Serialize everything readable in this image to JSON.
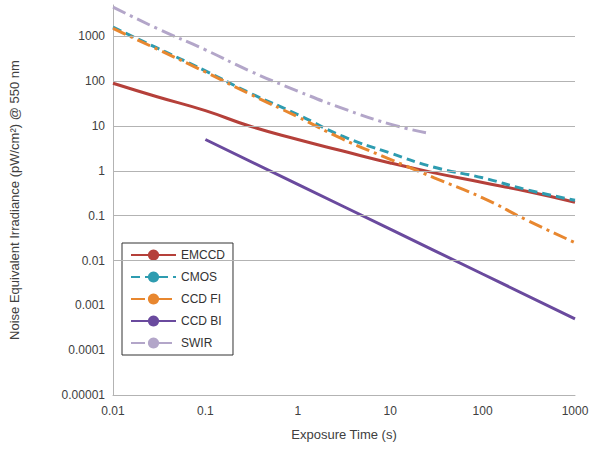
{
  "chart_data": {
    "type": "line",
    "x_label": "Exposure Time (s)",
    "y_label": "Noise Equivalent Irradiance (pW/cm²) @ 550 nm",
    "log": true,
    "grid": true,
    "legend": "lower left",
    "xlim": [
      0.01,
      1000
    ],
    "xticks": [
      0.01,
      0.1,
      1,
      10,
      100,
      1000
    ],
    "ylim": [
      1e-05,
      5000
    ],
    "yticks": [
      1e-05,
      0.0001,
      0.001,
      0.01,
      0.1,
      1,
      10,
      100,
      1000
    ],
    "series": [
      {
        "name": "EMCCD",
        "color": "#b5403a",
        "line_style": "solid",
        "x": [
          0.01,
          0.03,
          0.1,
          0.3,
          1,
          3,
          10,
          30,
          100,
          300,
          1000
        ],
        "values": [
          90,
          45,
          22,
          10,
          5,
          2.8,
          1.5,
          0.9,
          0.55,
          0.35,
          0.2
        ]
      },
      {
        "name": "CMOS",
        "color": "#2e9cb0",
        "line_style": "dashed",
        "x": [
          0.01,
          0.03,
          0.1,
          0.3,
          1,
          3,
          10,
          30,
          100,
          300,
          1000
        ],
        "values": [
          1600,
          550,
          170,
          55,
          18,
          6,
          2.5,
          1.2,
          0.7,
          0.38,
          0.22
        ]
      },
      {
        "name": "CCD FI",
        "color": "#e8872f",
        "line_style": "dashdot",
        "x": [
          0.01,
          0.03,
          0.1,
          0.3,
          1,
          3,
          10,
          30,
          100,
          300,
          1000
        ],
        "values": [
          1500,
          520,
          160,
          52,
          16,
          5.2,
          1.8,
          0.7,
          0.25,
          0.08,
          0.025
        ]
      },
      {
        "name": "CCD BI",
        "color": "#6a4a9e",
        "line_style": "solid",
        "x": [
          0.1,
          1,
          10,
          100,
          1000
        ],
        "values": [
          5,
          0.5,
          0.05,
          0.005,
          0.0005
        ]
      },
      {
        "name": "SWIR",
        "color": "#b3a6c9",
        "line_style": "dashdot",
        "x": [
          0.01,
          0.03,
          0.1,
          0.3,
          1,
          3,
          10,
          25
        ],
        "values": [
          4500,
          1500,
          500,
          170,
          60,
          25,
          11,
          7
        ]
      }
    ]
  }
}
